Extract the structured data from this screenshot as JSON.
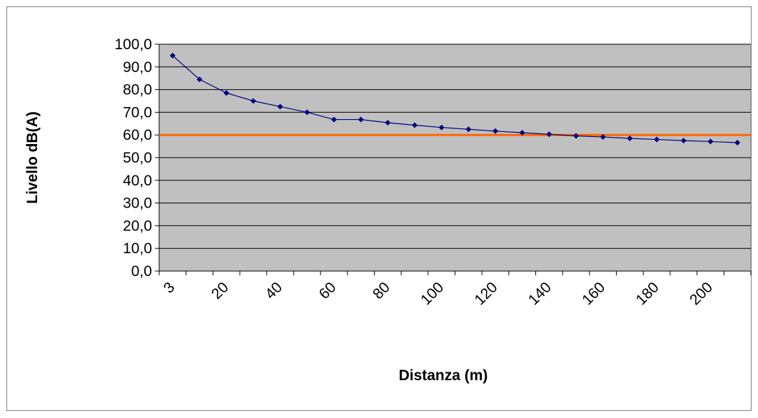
{
  "chart_data": {
    "type": "line",
    "xlabel": "Distanza (m)",
    "ylabel": "Livello dB(A)",
    "ylim": [
      0,
      100
    ],
    "y_ticks": [
      "0,0",
      "10,0",
      "20,0",
      "30,0",
      "40,0",
      "50,0",
      "60,0",
      "70,0",
      "80,0",
      "90,0",
      "100,0"
    ],
    "x": [
      3,
      10,
      20,
      30,
      40,
      50,
      60,
      70,
      80,
      90,
      100,
      110,
      120,
      130,
      140,
      150,
      160,
      170,
      180,
      190,
      200,
      210
    ],
    "x_tick_labels": [
      "3",
      "20",
      "40",
      "60",
      "80",
      "100",
      "120",
      "140",
      "160",
      "180",
      "200"
    ],
    "grid": "horizontal",
    "legend": "none",
    "series": [
      {
        "values": [
          95.0,
          84.5,
          78.5,
          75.0,
          72.5,
          70.0,
          66.8,
          66.8,
          65.4,
          64.3,
          63.3,
          62.5,
          61.7,
          61.0,
          60.3,
          59.6,
          59.1,
          58.5,
          58.0,
          57.5,
          57.1,
          56.6
        ],
        "color": "#000080"
      }
    ],
    "reference_line": {
      "value": 60,
      "color": "#ff6600"
    },
    "plot_background": "#c0c0c0"
  }
}
